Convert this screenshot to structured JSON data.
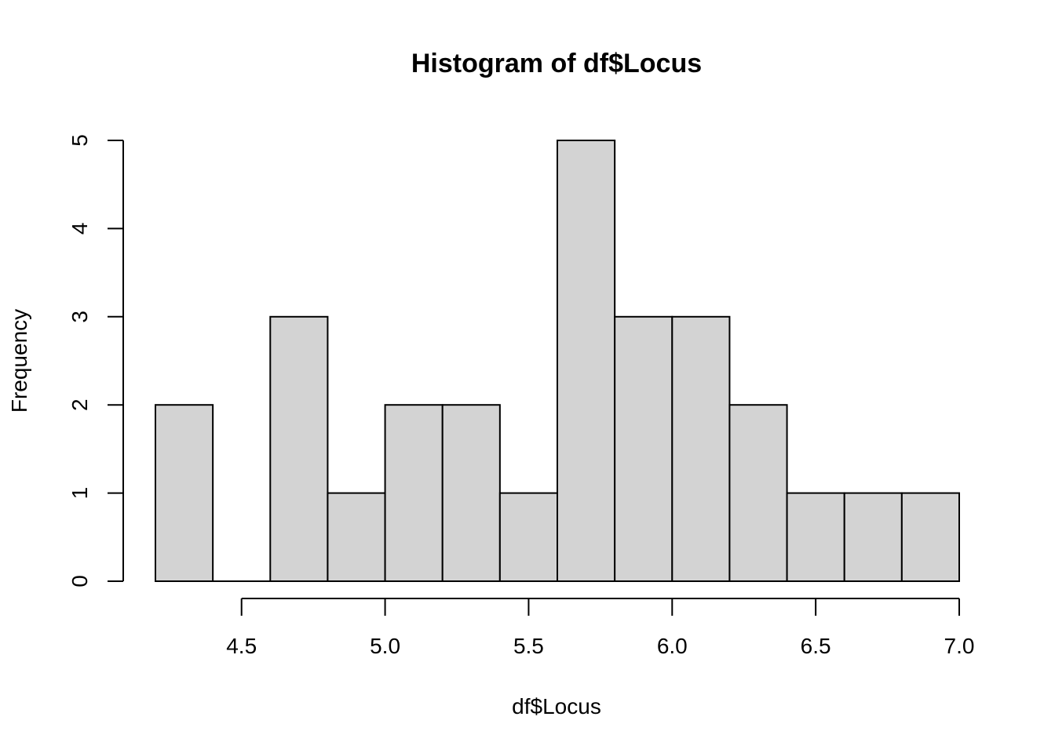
{
  "chart_data": {
    "type": "bar",
    "title": "Histogram of df$Locus",
    "xlabel": "df$Locus",
    "ylabel": "Frequency",
    "bins": [
      {
        "from": 4.2,
        "to": 4.4,
        "count": 2
      },
      {
        "from": 4.4,
        "to": 4.6,
        "count": 0
      },
      {
        "from": 4.6,
        "to": 4.8,
        "count": 3
      },
      {
        "from": 4.8,
        "to": 5.0,
        "count": 1
      },
      {
        "from": 5.0,
        "to": 5.2,
        "count": 2
      },
      {
        "from": 5.2,
        "to": 5.4,
        "count": 2
      },
      {
        "from": 5.4,
        "to": 5.6,
        "count": 1
      },
      {
        "from": 5.6,
        "to": 5.8,
        "count": 5
      },
      {
        "from": 5.8,
        "to": 6.0,
        "count": 3
      },
      {
        "from": 6.0,
        "to": 6.2,
        "count": 3
      },
      {
        "from": 6.2,
        "to": 6.4,
        "count": 2
      },
      {
        "from": 6.4,
        "to": 6.6,
        "count": 1
      },
      {
        "from": 6.6,
        "to": 6.8,
        "count": 1
      },
      {
        "from": 6.8,
        "to": 7.0,
        "count": 1
      }
    ],
    "xticks": [
      "4.5",
      "5.0",
      "5.5",
      "6.0",
      "6.5",
      "7.0"
    ],
    "yticks": [
      "0",
      "1",
      "2",
      "3",
      "4",
      "5"
    ],
    "xlim": [
      4.2,
      7.0
    ],
    "ylim": [
      0,
      5
    ],
    "bar_color": "#d3d3d3",
    "grid": false,
    "legend": "none"
  }
}
